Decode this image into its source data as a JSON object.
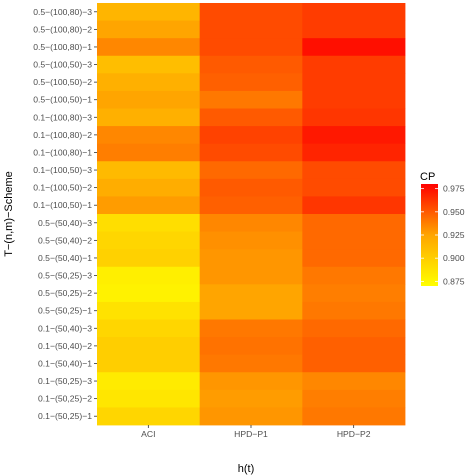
{
  "chart_data": {
    "type": "heatmap",
    "xlabel": "h(t)",
    "ylabel": "T−(n,m)−Scheme",
    "x_categories": [
      "ACI",
      "HPD−P1",
      "HPD−P2"
    ],
    "y_categories": [
      "0.5−(100,80)−3",
      "0.5−(100,80)−2",
      "0.5−(100,80)−1",
      "0.5−(100,50)−3",
      "0.5−(100,50)−2",
      "0.5−(100,50)−1",
      "0.1−(100,80)−3",
      "0.1−(100,80)−2",
      "0.1−(100,80)−1",
      "0.1−(100,50)−3",
      "0.1−(100,50)−2",
      "0.1−(100,50)−1",
      "0.5−(50,40)−3",
      "0.5−(50,40)−2",
      "0.5−(50,40)−1",
      "0.5−(50,25)−3",
      "0.5−(50,25)−2",
      "0.5−(50,25)−1",
      "0.1−(50,40)−3",
      "0.1−(50,40)−2",
      "0.1−(50,40)−1",
      "0.1−(50,25)−3",
      "0.1−(50,25)−2",
      "0.1−(50,25)−1"
    ],
    "values": [
      [
        0.915,
        0.955,
        0.96
      ],
      [
        0.925,
        0.955,
        0.96
      ],
      [
        0.935,
        0.955,
        0.975
      ],
      [
        0.91,
        0.95,
        0.96
      ],
      [
        0.918,
        0.948,
        0.96
      ],
      [
        0.925,
        0.94,
        0.96
      ],
      [
        0.918,
        0.95,
        0.962
      ],
      [
        0.935,
        0.958,
        0.972
      ],
      [
        0.938,
        0.955,
        0.968
      ],
      [
        0.912,
        0.945,
        0.955
      ],
      [
        0.92,
        0.95,
        0.955
      ],
      [
        0.928,
        0.948,
        0.962
      ],
      [
        0.89,
        0.935,
        0.945
      ],
      [
        0.895,
        0.932,
        0.945
      ],
      [
        0.898,
        0.93,
        0.945
      ],
      [
        0.88,
        0.93,
        0.94
      ],
      [
        0.878,
        0.925,
        0.938
      ],
      [
        0.888,
        0.925,
        0.94
      ],
      [
        0.895,
        0.94,
        0.945
      ],
      [
        0.9,
        0.942,
        0.948
      ],
      [
        0.9,
        0.94,
        0.948
      ],
      [
        0.882,
        0.93,
        0.935
      ],
      [
        0.885,
        0.928,
        0.938
      ],
      [
        0.895,
        0.93,
        0.94
      ]
    ],
    "legend": {
      "title": "CP",
      "range": [
        0.87,
        0.98
      ],
      "ticks": [
        "0.975",
        "0.950",
        "0.925",
        "0.900",
        "0.875"
      ],
      "tick_values": [
        0.975,
        0.95,
        0.925,
        0.9,
        0.875
      ],
      "colors": [
        "#FFFF00",
        "#FFA500",
        "#FF0000"
      ],
      "placement": "right"
    },
    "panel_background": "#ebebeb"
  }
}
